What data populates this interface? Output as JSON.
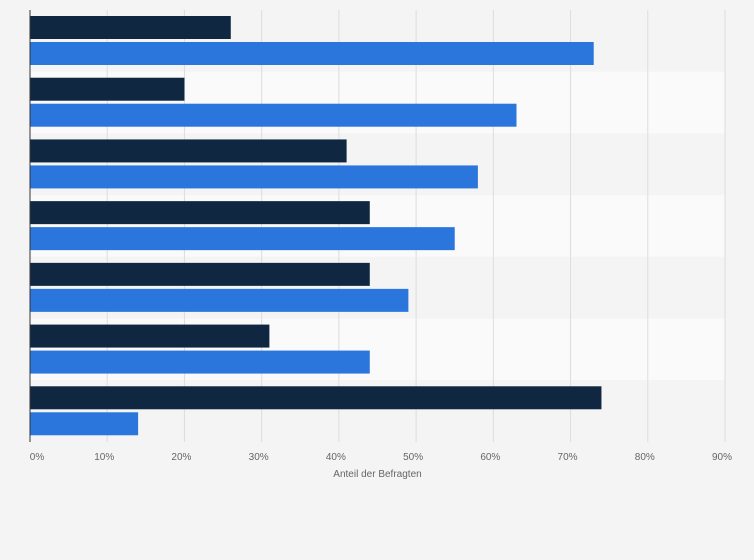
{
  "chart_data": {
    "type": "bar",
    "orientation": "horizontal",
    "title": "",
    "xlabel": "Anteil der Befragten",
    "ylabel": "",
    "xlim": [
      0,
      90
    ],
    "x_ticks": [
      0,
      10,
      20,
      30,
      40,
      50,
      60,
      70,
      80,
      90
    ],
    "tick_labels": [
      "0%",
      "10%",
      "20%",
      "30%",
      "40%",
      "50%",
      "60%",
      "70%",
      "80%",
      "90%"
    ],
    "categories": [
      "",
      "",
      "",
      "",
      "",
      "",
      ""
    ],
    "series": [
      {
        "name": "",
        "color": "#0f2741",
        "values": [
          26,
          20,
          41,
          44,
          44,
          31,
          74
        ]
      },
      {
        "name": "",
        "color": "#2a76dd",
        "values": [
          73,
          63,
          58,
          55,
          49,
          44,
          14
        ]
      }
    ],
    "grid": true,
    "legend": "none"
  }
}
